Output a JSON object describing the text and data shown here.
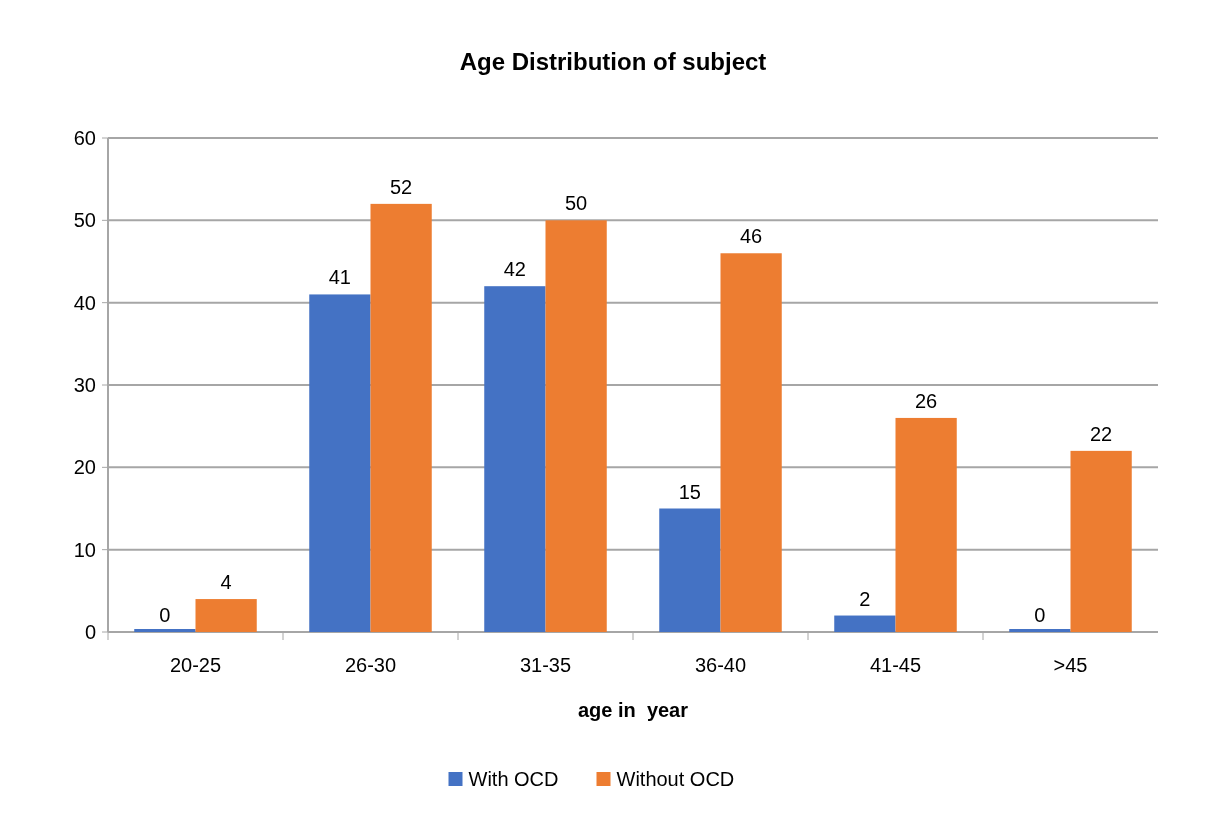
{
  "chart_data": {
    "type": "bar",
    "title": "Age Distribution of subject",
    "xlabel": "age in  year",
    "categories": [
      "20-25",
      "26-30",
      "31-35",
      "36-40",
      "41-45",
      ">45"
    ],
    "series": [
      {
        "name": "With OCD",
        "color": "#4472c4",
        "values": [
          0,
          41,
          42,
          15,
          2,
          0
        ]
      },
      {
        "name": "Without OCD",
        "color": "#ed7d31",
        "values": [
          4,
          52,
          50,
          46,
          26,
          22
        ]
      }
    ],
    "ylim": [
      0,
      60
    ],
    "yticks": [
      0,
      10,
      20,
      30,
      40,
      50,
      60
    ],
    "grid": "y",
    "legend": "bottom",
    "data_labels": true
  }
}
